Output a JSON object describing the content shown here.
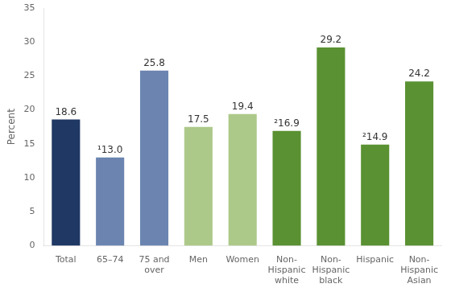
{
  "chart_data": {
    "type": "bar",
    "categories": [
      "Total",
      "65–74",
      "75 and\nover",
      "Men",
      "Women",
      "Non-\nHispanic\nwhite",
      "Non-\nHispanic\nblack",
      "Hispanic",
      "Non-\nHispanic\nAsian"
    ],
    "values": [
      18.6,
      13.0,
      25.8,
      17.5,
      19.4,
      16.9,
      29.2,
      14.9,
      24.2
    ],
    "value_labels": [
      "18.6",
      "¹13.0",
      "25.8",
      "17.5",
      "19.4",
      "²16.9",
      "29.2",
      "²14.9",
      "24.2"
    ],
    "colors": [
      "#1f3864",
      "#6b85b0",
      "#6b85b0",
      "#adc98a",
      "#adc98a",
      "#5a9132",
      "#5a9132",
      "#5a9132",
      "#5a9132"
    ],
    "ylabel": "Percent",
    "ylim": [
      0,
      35
    ],
    "yticks": [
      0,
      5,
      10,
      15,
      20,
      25,
      30,
      35
    ],
    "grid": false,
    "data_labels": true
  }
}
